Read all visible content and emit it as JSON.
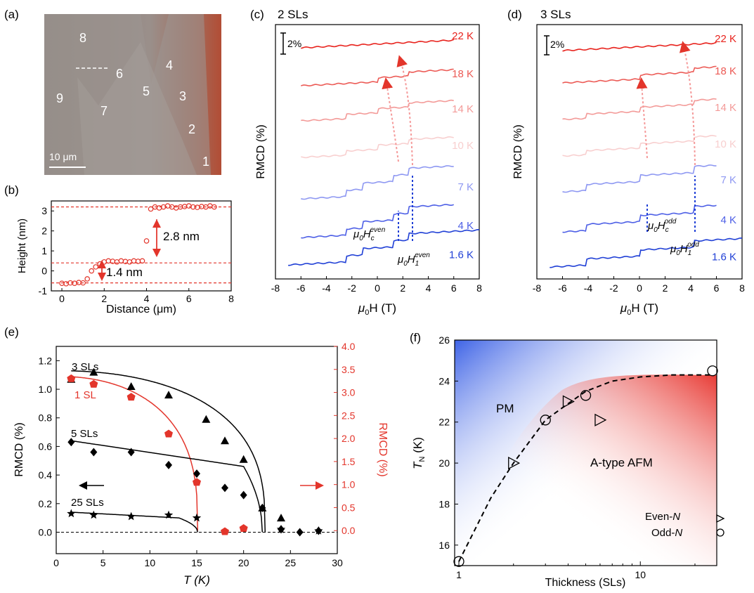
{
  "panels": {
    "a": {
      "tag": "(a)",
      "region_labels": [
        "8",
        "6",
        "4",
        "5",
        "3",
        "9",
        "7",
        "2",
        "1"
      ],
      "scalebar": "10 μm"
    },
    "b": {
      "tag": "(b)",
      "ylabel": "Height (nm)",
      "xlabel": "Distance (μm)",
      "xticks": [
        "0",
        "2",
        "4",
        "6",
        "8"
      ],
      "yticks": [
        "-1",
        "0",
        "1",
        "2",
        "3"
      ],
      "step1": "1.4 nm",
      "step2": "2.8 nm"
    },
    "c": {
      "tag": "(c)",
      "title": "2 SLs",
      "scale": "2%",
      "ylabel": "RMCD (%)",
      "xlabel_main": "μ",
      "xlabel_sub": "0",
      "xlabel_rest": "H (T)",
      "xticks": [
        "-8",
        "-6",
        "-4",
        "-2",
        "0",
        "2",
        "4",
        "6",
        "8"
      ],
      "temps": [
        "22 K",
        "18 K",
        "14 K",
        "10 K",
        "7 K",
        "4 K",
        "1.6 K"
      ],
      "hc_sup": "even",
      "h1_sup": "even"
    },
    "d": {
      "tag": "(d)",
      "title": "3 SLs",
      "scale": "2%",
      "ylabel": "RMCD (%)",
      "xlabel_main": "μ",
      "xlabel_sub": "0",
      "xlabel_rest": "H (T)",
      "xticks": [
        "-8",
        "-6",
        "-4",
        "-2",
        "0",
        "2",
        "4",
        "6",
        "8"
      ],
      "temps": [
        "22 K",
        "18 K",
        "14 K",
        "10 K",
        "7 K",
        "4 K",
        "1.6 K"
      ],
      "hc_sup": "odd",
      "h1_sup": "odd"
    },
    "e": {
      "tag": "(e)",
      "ylabel_left": "RMCD (%)",
      "ylabel_right": "RMCD (%)",
      "xlabel": "T (K)",
      "xticks": [
        "0",
        "5",
        "10",
        "15",
        "20",
        "25",
        "30"
      ],
      "yticks_left": [
        "0.0",
        "0.2",
        "0.4",
        "0.6",
        "0.8",
        "1.0",
        "1.2"
      ],
      "yticks_right": [
        "0.0",
        "0.5",
        "1.0",
        "1.5",
        "2.0",
        "2.5",
        "3.0",
        "3.5",
        "4.0"
      ],
      "labels": [
        "3 SLs",
        "1 SL",
        "5 SLs",
        "25 SLs"
      ]
    },
    "f": {
      "tag": "(f)",
      "ylabel": "T",
      "ylabel_sub": "N",
      "ylabel_rest": " (K)",
      "xlabel": "Thickness (SLs)",
      "xticks": [
        "1",
        "10"
      ],
      "yticks": [
        "16",
        "18",
        "20",
        "22",
        "24",
        "26"
      ],
      "pm": "PM",
      "afm": "A-type AFM",
      "legend_even": "Even-",
      "legend_odd": "Odd-",
      "legend_n": "N"
    }
  },
  "chart_data": [
    {
      "type": "scatter",
      "panel": "b",
      "xlabel": "Distance (μm)",
      "ylabel": "Height (nm)",
      "xlim": [
        -0.5,
        8
      ],
      "ylim": [
        -1,
        3.5
      ],
      "levels": [
        -0.6,
        0.4,
        3.2
      ],
      "x": [
        0,
        0.2,
        0.4,
        0.6,
        0.8,
        1.0,
        1.2,
        1.4,
        1.6,
        1.8,
        2.0,
        2.2,
        2.4,
        2.6,
        2.8,
        3.0,
        3.2,
        3.4,
        3.6,
        3.8,
        4.0,
        4.2,
        4.4,
        4.6,
        4.8,
        5.0,
        5.2,
        5.4,
        5.6,
        5.8,
        6.0,
        6.2,
        6.4,
        6.6,
        6.8,
        7.0,
        7.2
      ],
      "y": [
        -0.62,
        -0.64,
        -0.6,
        -0.62,
        -0.58,
        -0.6,
        -0.4,
        0.0,
        0.2,
        0.35,
        0.45,
        0.5,
        0.48,
        0.45,
        0.5,
        0.47,
        0.45,
        0.5,
        0.48,
        0.5,
        1.5,
        3.1,
        3.2,
        3.15,
        3.2,
        3.25,
        3.2,
        3.15,
        3.2,
        3.22,
        3.25,
        3.2,
        3.18,
        3.22,
        3.2,
        3.25,
        3.2
      ]
    },
    {
      "type": "line",
      "panel": "c",
      "xlabel": "μ0H (T)",
      "ylabel": "RMCD (%)",
      "xlim": [
        -8,
        8
      ],
      "series": [
        {
          "name": "22 K",
          "transitions": []
        },
        {
          "name": "18 K",
          "transitions": [
            0,
            2.4
          ]
        },
        {
          "name": "14 K",
          "transitions": [
            -2.5,
            0,
            2.4
          ]
        },
        {
          "name": "10 K",
          "transitions": [
            -2.5,
            0,
            2.4
          ]
        },
        {
          "name": "7 K",
          "transitions": [
            -2.5,
            -1.2,
            1.2,
            2.4
          ]
        },
        {
          "name": "4 K",
          "transitions": [
            -2.5,
            -1.2,
            1.2,
            2.4
          ]
        },
        {
          "name": "1.6 K",
          "transitions": [
            -2.5,
            -1.2,
            1.2,
            2.4
          ]
        }
      ]
    },
    {
      "type": "line",
      "panel": "d",
      "xlabel": "μ0H (T)",
      "ylabel": "RMCD (%)",
      "xlim": [
        -8,
        8
      ],
      "series": [
        {
          "name": "22 K",
          "transitions": []
        },
        {
          "name": "18 K",
          "transitions": [
            0,
            4.2
          ]
        },
        {
          "name": "14 K",
          "transitions": [
            -4.2,
            0,
            4.2
          ]
        },
        {
          "name": "10 K",
          "transitions": [
            -4.2,
            0,
            4.2
          ]
        },
        {
          "name": "7 K",
          "transitions": [
            -4.2,
            0,
            4.2
          ]
        },
        {
          "name": "4 K",
          "transitions": [
            -4.2,
            0,
            4.2
          ]
        },
        {
          "name": "1.6 K",
          "transitions": [
            -4.2,
            0,
            4.2
          ]
        }
      ]
    },
    {
      "type": "scatter",
      "panel": "e",
      "xlabel": "T (K)",
      "ylabel": "RMCD (%)",
      "xlim": [
        0,
        30
      ],
      "ylim": [
        -0.15,
        1.3
      ],
      "ylim_right": [
        -0.5,
        4.0
      ],
      "series": [
        {
          "name": "3 SLs",
          "axis": "left",
          "x": [
            1.6,
            4,
            8,
            12,
            16,
            18,
            20,
            22,
            24
          ],
          "y": [
            1.07,
            1.12,
            1.02,
            0.96,
            0.79,
            0.64,
            0.51,
            0.17,
            0.1
          ]
        },
        {
          "name": "1 SL",
          "axis": "right",
          "x": [
            1.6,
            4,
            8,
            12,
            15,
            18,
            20
          ],
          "y": [
            3.3,
            3.18,
            2.9,
            2.1,
            1.05,
            -0.02,
            0.05
          ]
        },
        {
          "name": "5 SLs",
          "axis": "left",
          "x": [
            1.6,
            4,
            8,
            12,
            15,
            18,
            20,
            22,
            24,
            26,
            28
          ],
          "y": [
            0.63,
            0.56,
            0.56,
            0.47,
            0.41,
            0.31,
            0.26,
            0.17,
            0.02,
            0.0,
            0.01
          ]
        },
        {
          "name": "25 SLs",
          "axis": "left",
          "x": [
            1.6,
            4,
            8,
            12,
            15,
            24,
            28
          ],
          "y": [
            0.13,
            0.12,
            0.11,
            0.12,
            0.1,
            0.02,
            0.01
          ]
        }
      ]
    },
    {
      "type": "scatter",
      "panel": "f",
      "xlabel": "Thickness (SLs)",
      "ylabel": "TN (K)",
      "xscale": "log",
      "xlim": [
        1,
        25
      ],
      "ylim": [
        15,
        26
      ],
      "series": [
        {
          "name": "Even-N",
          "marker": "triangle",
          "x": [
            2,
            4,
            6
          ],
          "y": [
            20.0,
            23.0,
            22.1
          ]
        },
        {
          "name": "Odd-N",
          "marker": "circle",
          "x": [
            1,
            3,
            5,
            25
          ],
          "y": [
            15.2,
            22.1,
            23.3,
            24.5
          ]
        }
      ],
      "fit": {
        "x": [
          1,
          1.5,
          2,
          3,
          4,
          5,
          7,
          10,
          15,
          25
        ],
        "y": [
          15.2,
          18.3,
          20.0,
          22.1,
          22.9,
          23.5,
          24.0,
          24.2,
          24.3,
          24.3
        ]
      }
    }
  ]
}
